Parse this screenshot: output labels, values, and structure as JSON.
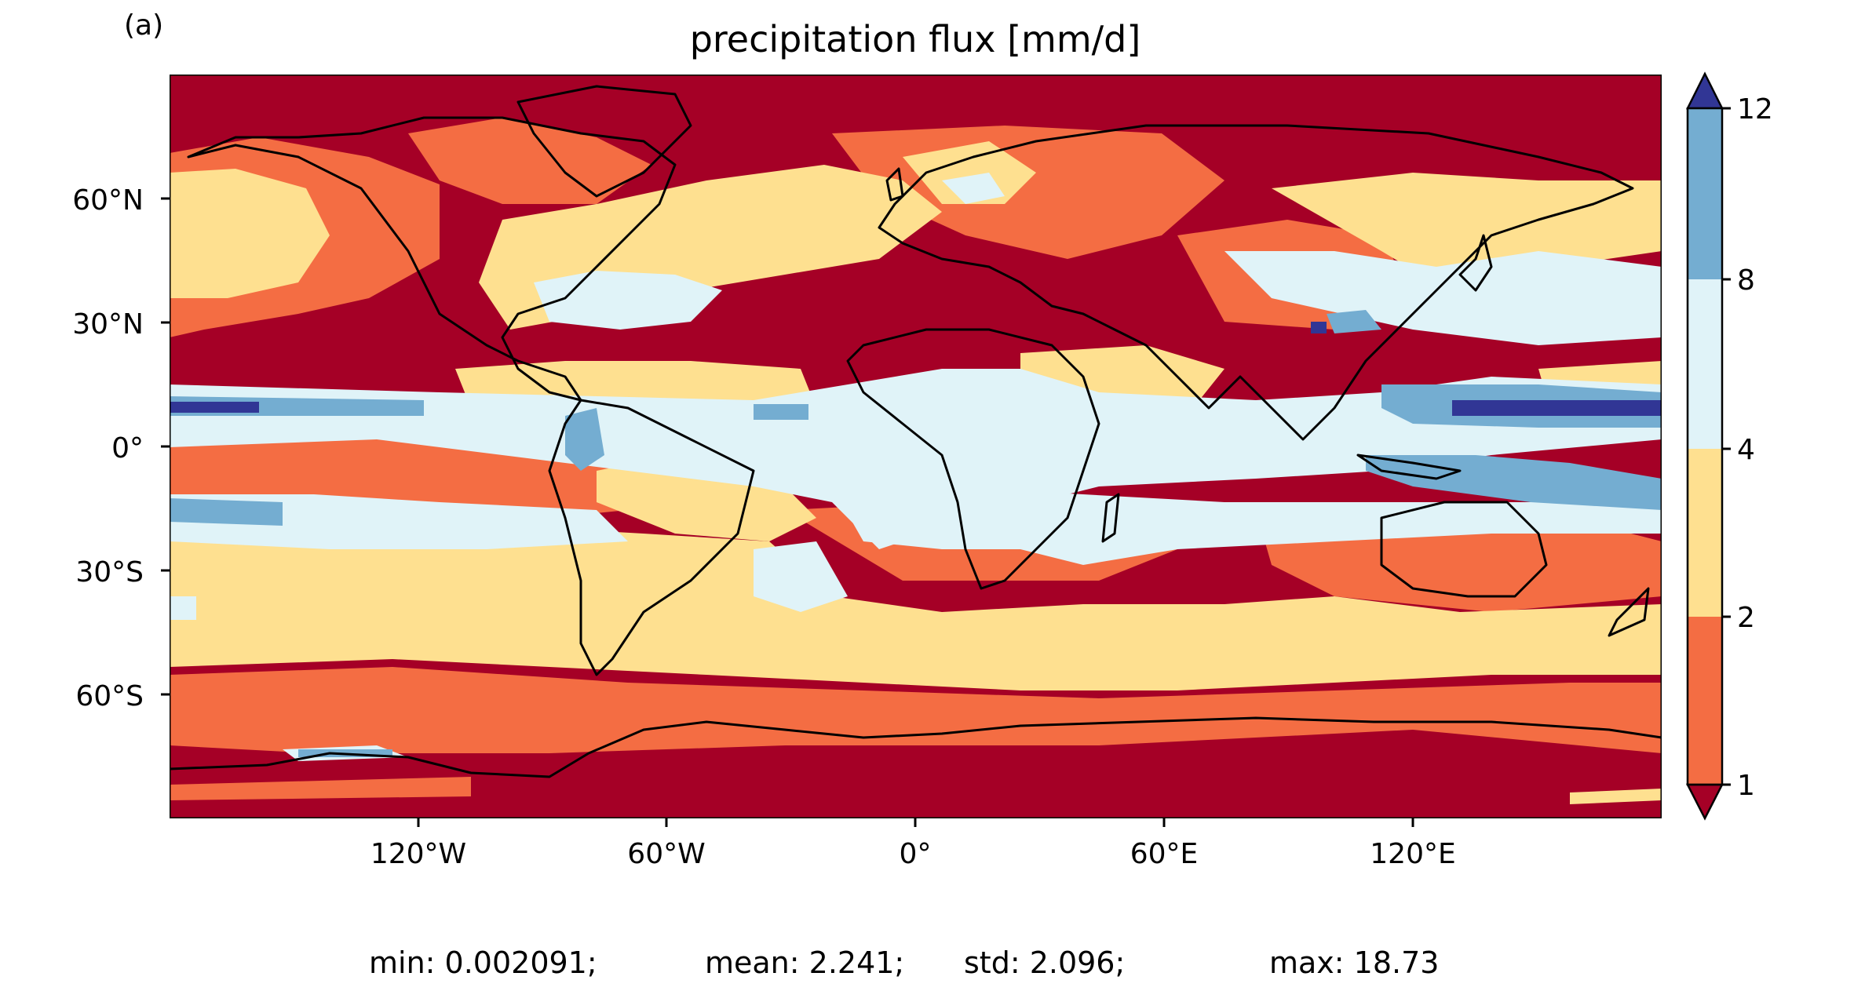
{
  "panel_label": "(a)",
  "title": "precipitation flux [mm/d]",
  "latitude_ticks": [
    "60°N",
    "30°N",
    "0°",
    "30°S",
    "60°S"
  ],
  "longitude_ticks": [
    "120°W",
    "60°W",
    "0°",
    "60°E",
    "120°E"
  ],
  "colorbar": {
    "levels": [
      1,
      2,
      4,
      8,
      12
    ],
    "labels": [
      "1",
      "2",
      "4",
      "8",
      "12"
    ],
    "colors": {
      "under": "#a50026",
      "bin_1_2": "#f46d43",
      "bin_2_4": "#fee090",
      "bin_4_8": "#e0f3f8",
      "bin_8_12": "#74add1",
      "over": "#313695"
    },
    "extend": "both"
  },
  "stats": {
    "min": "min: 0.002091;",
    "mean": "mean: 2.241;",
    "std": "std: 2.096;",
    "max": "max: 18.73"
  },
  "map": {
    "projection": "PlateCarree",
    "lon_range": [
      -180,
      180
    ],
    "lat_range": [
      -90,
      90
    ],
    "coastlines": true
  }
}
